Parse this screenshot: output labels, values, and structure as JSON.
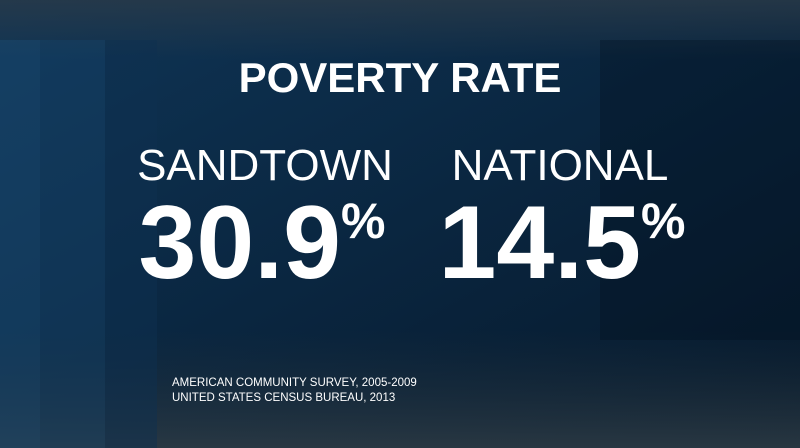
{
  "header": {
    "title": "POVERTY RATE"
  },
  "stats": [
    {
      "label": "SANDTOWN",
      "value": "30.9",
      "unit": "%"
    },
    {
      "label": "NATIONAL",
      "value": "14.5",
      "unit": "%"
    }
  ],
  "sources": [
    "AMERICAN COMMUNITY SURVEY, 2005-2009",
    "UNITED STATES CENSUS BUREAU, 2013"
  ]
}
